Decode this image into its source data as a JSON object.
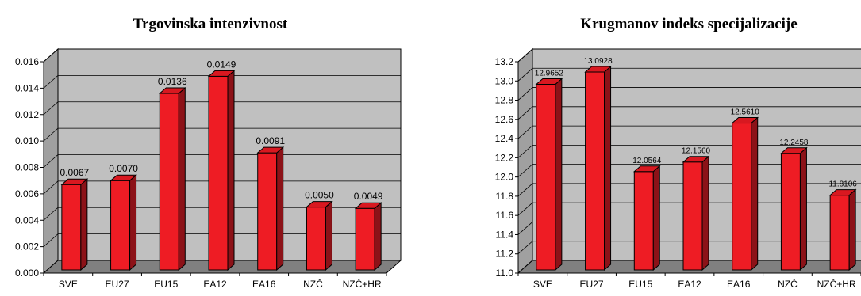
{
  "colors": {
    "bar_front": "#ee1c24",
    "bar_side": "#8c1218",
    "bar_top": "#d81820",
    "plot_back": "#c0c0c0",
    "plot_floor": "#808080",
    "grid": "#000000"
  },
  "chart_data": [
    {
      "type": "bar",
      "title": "Trgovinska intenzivnost",
      "categories": [
        "SVE",
        "EU27",
        "EU15",
        "EA12",
        "EA16",
        "NZČ",
        "NZČ+HR"
      ],
      "values": [
        0.0067,
        0.007,
        0.0136,
        0.0149,
        0.0091,
        0.005,
        0.0049
      ],
      "value_labels": [
        "0.0067",
        "0.0070",
        "0.0136",
        "0.0149",
        "0.0091",
        "0.0050",
        "0.0049"
      ],
      "ylim": [
        0,
        0.016
      ],
      "yticks": [
        "0.000",
        "0.002",
        "0.004",
        "0.006",
        "0.008",
        "0.010",
        "0.012",
        "0.014",
        "0.016"
      ],
      "grid": true,
      "style": "3d"
    },
    {
      "type": "bar",
      "title": "Krugmanov indeks specijalizacije",
      "categories": [
        "SVE",
        "EU27",
        "EU15",
        "EA12",
        "EA16",
        "NZČ",
        "NZČ+HR"
      ],
      "values": [
        12.9652,
        13.0928,
        12.0564,
        12.156,
        12.561,
        12.2458,
        11.8106
      ],
      "value_labels": [
        "12.9652",
        "13.0928",
        "12.0564",
        "12.1560",
        "12.5610",
        "12.2458",
        "11.8106"
      ],
      "ylim": [
        11.0,
        13.2
      ],
      "yticks": [
        "11.0",
        "11.2",
        "11.4",
        "11.6",
        "11.8",
        "12.0",
        "12.2",
        "12.4",
        "12.6",
        "12.8",
        "13.0",
        "13.2"
      ],
      "grid": true,
      "style": "3d"
    }
  ]
}
